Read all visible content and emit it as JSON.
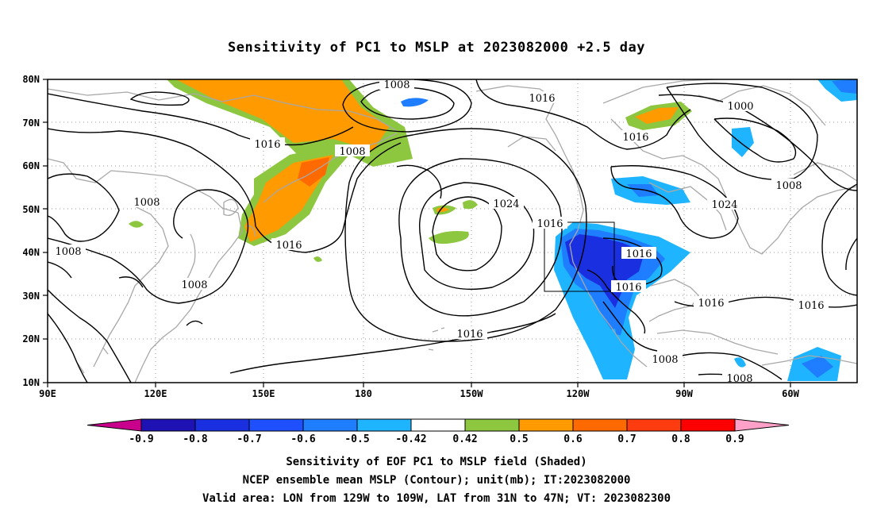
{
  "title": "Sensitivity of PC1 to MSLP at 2023082000 +2.5 day",
  "axes": {
    "lat_labels": [
      "80N",
      "70N",
      "60N",
      "50N",
      "40N",
      "30N",
      "20N",
      "10N"
    ],
    "lon_labels": [
      "90E",
      "120E",
      "150E",
      "180",
      "150W",
      "120W",
      "90W",
      "60W"
    ]
  },
  "contour_labels": [
    "1008",
    "1016",
    "1000",
    "1008",
    "1016",
    "1008",
    "1008",
    "1024",
    "1016",
    "1024",
    "1008",
    "1016",
    "1016",
    "1016",
    "1016",
    "1016",
    "1008",
    "1008",
    "1016",
    "1008"
  ],
  "colorbar": {
    "labels": [
      "-0.9",
      "-0.8",
      "-0.7",
      "-0.6",
      "-0.5",
      "-0.42",
      "0.42",
      "0.5",
      "0.6",
      "0.7",
      "0.8",
      "0.9"
    ],
    "colors": [
      "#c8008c",
      "#1e12b4",
      "#1a2fe0",
      "#1e50ff",
      "#1f7dff",
      "#1eb4ff",
      "#ffffff",
      "#8dc63f",
      "#ff9a00",
      "#ff6a00",
      "#ff3c10",
      "#ff0000",
      "#ffa0c8"
    ]
  },
  "colors": {
    "negative_strong": "#1a2fe0",
    "negative_medium": "#1f7dff",
    "negative_weak": "#1eb4ff",
    "positive_weak": "#8dc63f",
    "positive_medium": "#ff9a00",
    "positive_strong": "#ff3c10",
    "contour": "#000000",
    "coast": "#a8a8a8"
  },
  "captions": {
    "line1": "Sensitivity of EOF PC1 to MSLP field (Shaded)",
    "line2": "NCEP ensemble mean MSLP (Contour); unit(mb); IT:2023082000",
    "line3": "Valid area: LON from 129W to 109W, LAT from 31N to 47N; VT: 2023082300"
  }
}
